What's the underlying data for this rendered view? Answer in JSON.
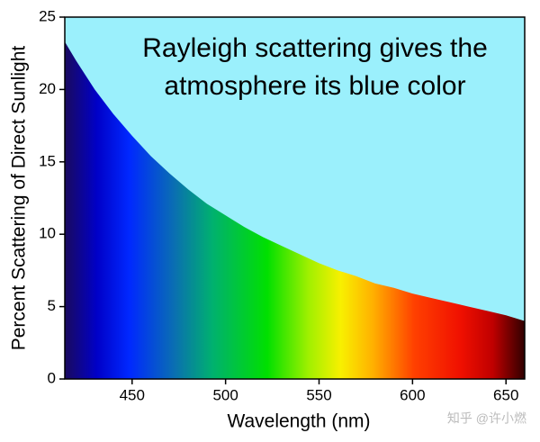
{
  "chart_data": {
    "type": "area",
    "annotation": [
      "Rayleigh scattering gives the",
      "atmosphere its blue color"
    ],
    "xlabel": "Wavelength (nm)",
    "ylabel": "Percent Scattering of Direct Sunlight",
    "watermark": "知乎 @许小燃",
    "x": [
      414,
      420,
      430,
      440,
      450,
      460,
      470,
      480,
      490,
      500,
      510,
      520,
      530,
      540,
      550,
      560,
      570,
      580,
      590,
      600,
      610,
      620,
      630,
      640,
      650,
      660
    ],
    "values": [
      23.3,
      22.0,
      20.0,
      18.3,
      16.8,
      15.4,
      14.2,
      13.1,
      12.1,
      11.3,
      10.5,
      9.8,
      9.2,
      8.6,
      8.0,
      7.5,
      7.1,
      6.6,
      6.3,
      5.9,
      5.6,
      5.3,
      5.0,
      4.7,
      4.4,
      4.0
    ],
    "background_color": "#9bf0fc",
    "xlim": [
      414,
      660
    ],
    "ylim": [
      0,
      25
    ],
    "xticks": [
      450,
      500,
      550,
      600,
      650
    ],
    "yticks": [
      0,
      5,
      10,
      15,
      20,
      25
    ]
  }
}
